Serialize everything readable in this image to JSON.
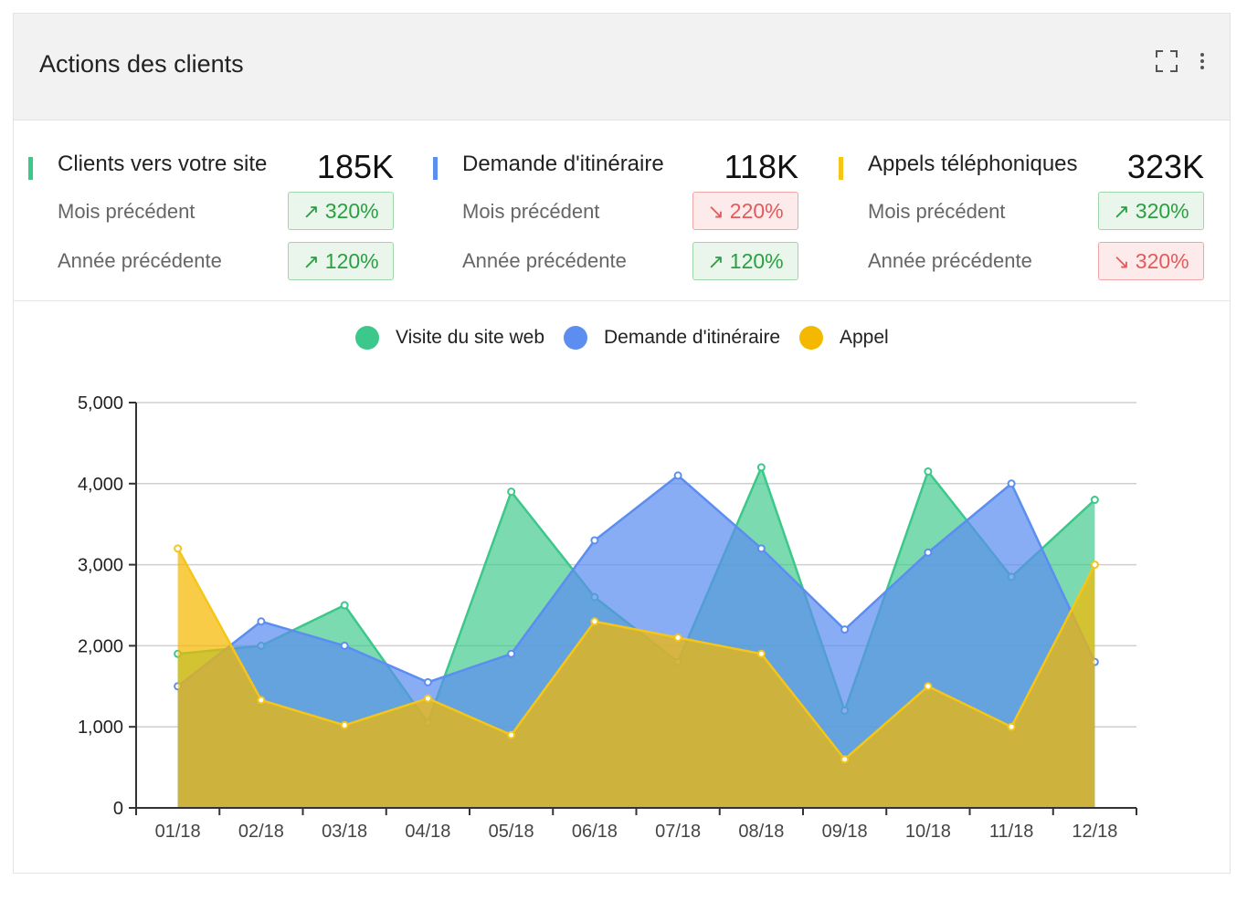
{
  "card": {
    "title": "Actions des clients"
  },
  "icons": {
    "expand": "expand-icon",
    "more": "more-vertical-icon",
    "trend_up": "↗",
    "trend_down": "↘"
  },
  "metrics": [
    {
      "label": "Clients vers votre site",
      "value": "185K",
      "color": "#3cc88a",
      "rows": [
        {
          "label": "Mois précédent",
          "trend": "up",
          "change": "320%"
        },
        {
          "label": "Année précédente",
          "trend": "up",
          "change": "120%"
        }
      ]
    },
    {
      "label": "Demande d'itinéraire",
      "value": "118K",
      "color": "#5b8ef0",
      "rows": [
        {
          "label": "Mois précédent",
          "trend": "down",
          "change": "220%"
        },
        {
          "label": "Année précédente",
          "trend": "up",
          "change": "120%"
        }
      ]
    },
    {
      "label": "Appels téléphoniques",
      "value": "323K",
      "color": "#f5c518",
      "rows": [
        {
          "label": "Mois précédent",
          "trend": "up",
          "change": "320%"
        },
        {
          "label": "Année précédente",
          "trend": "down",
          "change": "320%"
        }
      ]
    }
  ],
  "chart_data": {
    "type": "area",
    "categories": [
      "01/18",
      "02/18",
      "03/18",
      "04/18",
      "05/18",
      "06/18",
      "07/18",
      "08/18",
      "09/18",
      "10/18",
      "11/18",
      "12/18"
    ],
    "series": [
      {
        "name": "Visite du site web",
        "color": "#3cc88a",
        "values": [
          1900,
          2000,
          2500,
          1050,
          3900,
          2600,
          1800,
          4200,
          1200,
          4150,
          2850,
          3800
        ]
      },
      {
        "name": "Demande d'itinéraire",
        "color": "#5b8ef0",
        "values": [
          1500,
          2300,
          2000,
          1550,
          1900,
          3300,
          4100,
          3200,
          2200,
          3150,
          4000,
          1800
        ]
      },
      {
        "name": "Appel",
        "color": "#f5b800",
        "values": [
          3200,
          1330,
          1020,
          1350,
          900,
          2300,
          2100,
          1900,
          600,
          1500,
          1000,
          3000
        ]
      }
    ],
    "ylim": [
      0,
      5000
    ],
    "yticks": [
      "0",
      "1,000",
      "2,000",
      "3,000",
      "4,000",
      "5,000"
    ],
    "grid": true,
    "legend": "top"
  }
}
